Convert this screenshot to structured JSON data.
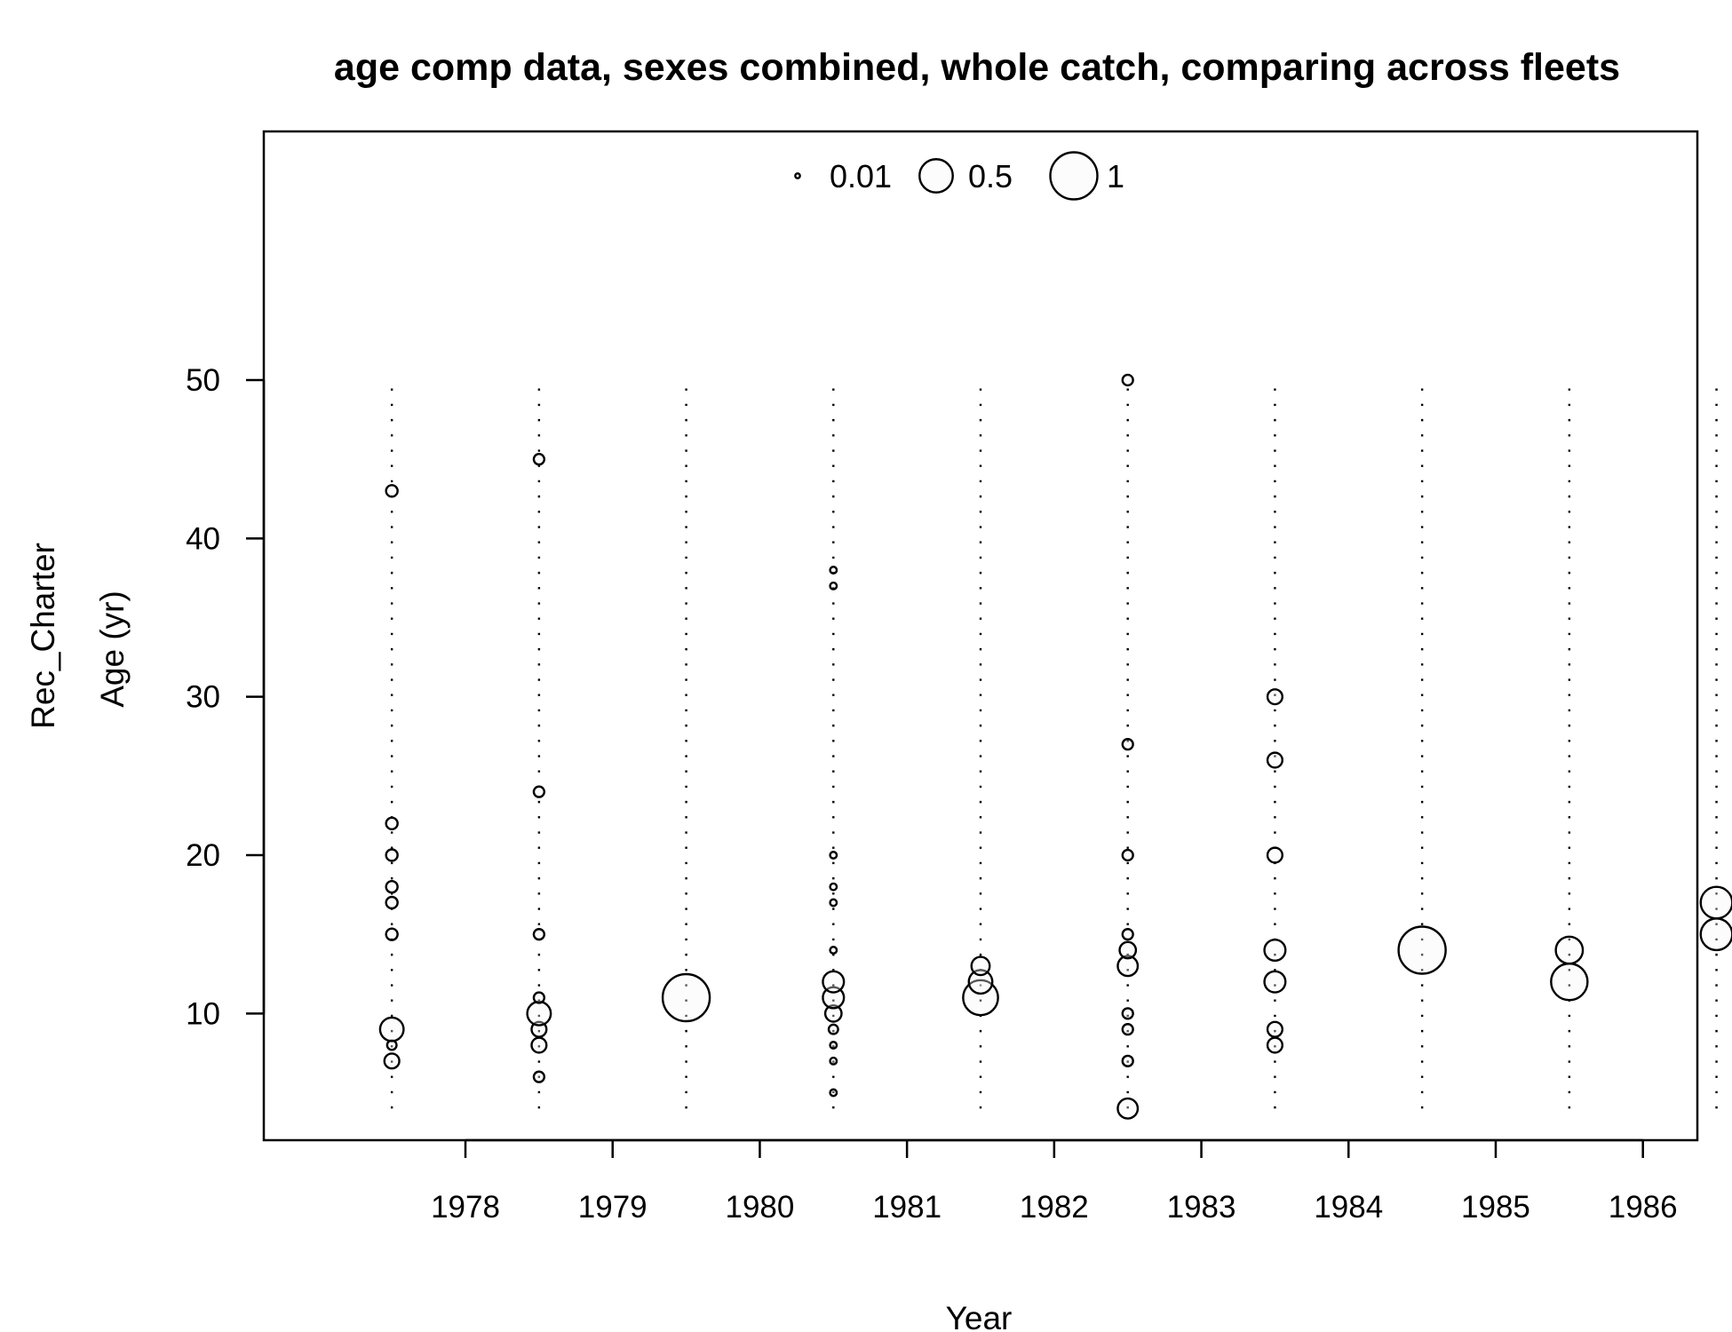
{
  "chart_data": {
    "type": "scatter",
    "title": "age comp data, sexes combined, whole catch, comparing across fleets",
    "xlabel": "Year",
    "ylabel": "Age (yr)",
    "fleet_label": "Rec_Charter",
    "x_ticks": [
      1978,
      1979,
      1980,
      1981,
      1982,
      1983,
      1984,
      1985,
      1986
    ],
    "y_ticks": [
      10,
      20,
      30,
      40,
      50
    ],
    "xlim": [
      1976.63,
      1986.37
    ],
    "ylim": [
      2.0,
      65.7
    ],
    "age_range": [
      4,
      50
    ],
    "legend": {
      "placement": "top",
      "entries": [
        {
          "value": 0.01,
          "label": "0.01"
        },
        {
          "value": 0.5,
          "label": "0.5"
        },
        {
          "value": 1,
          "label": "1"
        }
      ]
    },
    "series": [
      {
        "x": 1977.5,
        "points": [
          {
            "age": 7,
            "p": 0.1
          },
          {
            "age": 8,
            "p": 0.04
          },
          {
            "age": 9,
            "p": 0.25
          },
          {
            "age": 15,
            "p": 0.06
          },
          {
            "age": 17,
            "p": 0.06
          },
          {
            "age": 18,
            "p": 0.06
          },
          {
            "age": 20,
            "p": 0.06
          },
          {
            "age": 22,
            "p": 0.06
          },
          {
            "age": 43,
            "p": 0.06
          }
        ]
      },
      {
        "x": 1978.5,
        "points": [
          {
            "age": 6,
            "p": 0.05
          },
          {
            "age": 8,
            "p": 0.1
          },
          {
            "age": 9,
            "p": 0.1
          },
          {
            "age": 10,
            "p": 0.25
          },
          {
            "age": 11,
            "p": 0.05
          },
          {
            "age": 15,
            "p": 0.05
          },
          {
            "age": 24,
            "p": 0.05
          },
          {
            "age": 45,
            "p": 0.05
          }
        ]
      },
      {
        "x": 1979.5,
        "points": [
          {
            "age": 11,
            "p": 1.0
          }
        ]
      },
      {
        "x": 1980.5,
        "points": [
          {
            "age": 5,
            "p": 0.02
          },
          {
            "age": 7,
            "p": 0.02
          },
          {
            "age": 8,
            "p": 0.02
          },
          {
            "age": 9,
            "p": 0.04
          },
          {
            "age": 10,
            "p": 0.12
          },
          {
            "age": 11,
            "p": 0.2
          },
          {
            "age": 12,
            "p": 0.2
          },
          {
            "age": 14,
            "p": 0.02
          },
          {
            "age": 17,
            "p": 0.02
          },
          {
            "age": 18,
            "p": 0.02
          },
          {
            "age": 20,
            "p": 0.02
          },
          {
            "age": 37,
            "p": 0.02
          },
          {
            "age": 38,
            "p": 0.02
          }
        ]
      },
      {
        "x": 1981.5,
        "points": [
          {
            "age": 11,
            "p": 0.55
          },
          {
            "age": 12,
            "p": 0.25
          },
          {
            "age": 13,
            "p": 0.15
          }
        ]
      },
      {
        "x": 1982.5,
        "points": [
          {
            "age": 4,
            "p": 0.18
          },
          {
            "age": 7,
            "p": 0.05
          },
          {
            "age": 9,
            "p": 0.05
          },
          {
            "age": 10,
            "p": 0.05
          },
          {
            "age": 13,
            "p": 0.18
          },
          {
            "age": 14,
            "p": 0.12
          },
          {
            "age": 15,
            "p": 0.05
          },
          {
            "age": 20,
            "p": 0.05
          },
          {
            "age": 27,
            "p": 0.05
          },
          {
            "age": 50,
            "p": 0.05
          }
        ]
      },
      {
        "x": 1983.5,
        "points": [
          {
            "age": 8,
            "p": 0.1
          },
          {
            "age": 9,
            "p": 0.1
          },
          {
            "age": 12,
            "p": 0.2
          },
          {
            "age": 14,
            "p": 0.2
          },
          {
            "age": 20,
            "p": 0.1
          },
          {
            "age": 26,
            "p": 0.1
          },
          {
            "age": 30,
            "p": 0.1
          }
        ]
      },
      {
        "x": 1984.5,
        "points": [
          {
            "age": 14,
            "p": 1.0
          }
        ]
      },
      {
        "x": 1985.5,
        "points": [
          {
            "age": 12,
            "p": 0.6
          },
          {
            "age": 14,
            "p": 0.33
          }
        ]
      },
      {
        "x": 1986.5,
        "points": [
          {
            "age": 15,
            "p": 0.45
          },
          {
            "age": 17,
            "p": 0.45
          }
        ]
      }
    ]
  }
}
